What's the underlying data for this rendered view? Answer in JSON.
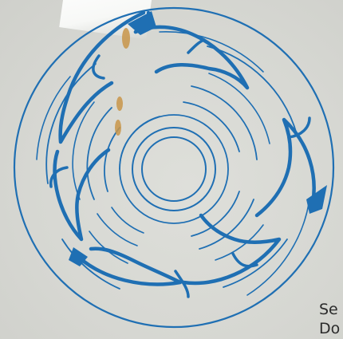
{
  "caption": {
    "line1": "Se",
    "line2": "Do"
  },
  "colors": {
    "background": "#d9dad5",
    "ink": "#1f6fb3",
    "stain": "#c9964a"
  },
  "image": {
    "subject_icon": "dolphin-ring-plate-icon",
    "dolphin_count": 6
  }
}
